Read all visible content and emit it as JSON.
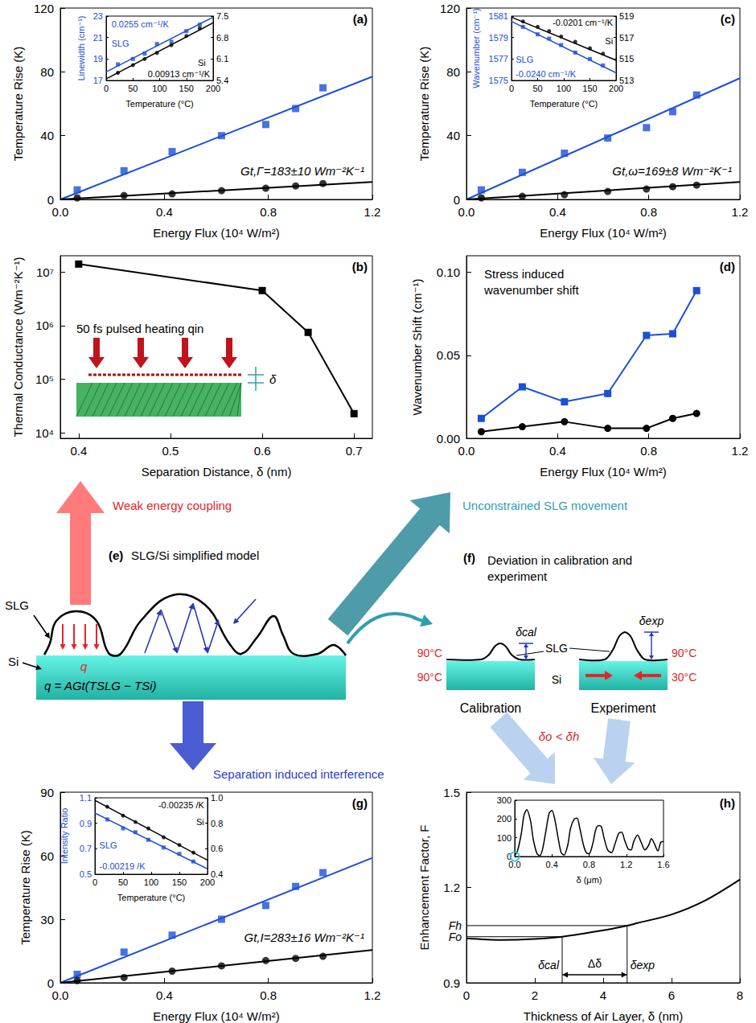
{
  "chart_data": [
    {
      "type": "scatter",
      "title": "(a)",
      "xlabel": "Energy Flux (10⁴ W/m²)",
      "ylabel": "Temperature Rise (K)",
      "xlim": [
        0,
        1.2
      ],
      "xticks": [
        {
          "value": 0,
          "label": "0.0"
        },
        0.4,
        0.8,
        1.2
      ],
      "ylim": [
        0,
        120
      ],
      "yticks": [
        0,
        40,
        80,
        120
      ],
      "annotations": [
        "Gt,Γ=183±10 Wm⁻²K⁻¹"
      ],
      "series": [
        {
          "color": "#1a4fd8",
          "marker": "square",
          "x": [
            0.065,
            0.245,
            0.43,
            0.62,
            0.79,
            0.905,
            1.01
          ],
          "values": [
            6,
            18,
            30,
            40,
            47,
            57,
            70
          ]
        },
        {
          "color": "#000000",
          "marker": "circle",
          "x": [
            0.065,
            0.245,
            0.43,
            0.62,
            0.79,
            0.905,
            1.01
          ],
          "values": [
            1,
            2.5,
            3.5,
            5.5,
            7,
            8.5,
            10
          ]
        },
        {
          "type": "line",
          "color": "#1a4fd8",
          "marker": "none",
          "x": [
            0,
            1.2
          ],
          "values": [
            0,
            77
          ]
        },
        {
          "type": "line",
          "color": "#000000",
          "marker": "none",
          "x": [
            0,
            1.2
          ],
          "values": [
            0,
            11
          ]
        }
      ],
      "inset": {
        "type": "scatter",
        "xlabel": "Temperature (°C)",
        "ylabel": "Linewidth (cm⁻¹)",
        "xlim": [
          0,
          200
        ],
        "xticks": [
          0,
          50,
          100,
          150,
          200
        ],
        "ylim": [
          17,
          23
        ],
        "yticks": [
          17,
          19,
          21,
          23
        ],
        "y2lim": [
          5.4,
          7.5
        ],
        "y2ticks": [
          5.4,
          6.1,
          6.8,
          7.5
        ],
        "series": [
          {
            "name": "SLG",
            "color": "#1a4fd8",
            "marker": "square",
            "x": [
              22,
              50,
              72,
              95,
              122,
              150,
              175
            ],
            "values": [
              18.5,
              19.0,
              19.5,
              20.4,
              20.6,
              21.6,
              22.2
            ]
          },
          {
            "name": "Si",
            "axis": "y2",
            "color": "#000000",
            "marker": "circle",
            "x": [
              22,
              50,
              72,
              95,
              122,
              150,
              175
            ],
            "values": [
              5.65,
              5.9,
              6.1,
              6.3,
              6.55,
              6.85,
              7.1
            ]
          },
          {
            "type": "line",
            "color": "#1a4fd8",
            "marker": "none",
            "annotation": "0.0255 cm⁻¹/K",
            "x": [
              0,
              200
            ],
            "values": [
              17.8,
              22.9
            ]
          },
          {
            "type": "line",
            "axis": "y2",
            "color": "#000000",
            "marker": "none",
            "annotation": "0.00913 cm⁻¹/K",
            "x": [
              0,
              200
            ],
            "values": [
              5.45,
              7.28
            ]
          }
        ]
      }
    },
    {
      "type": "line",
      "title": "(b)",
      "log": "y",
      "xlabel": "Separation Distance, δ (nm)",
      "ylabel": "Thermal Conductance (Wm⁻²K⁻¹)",
      "xlim": [
        0.38,
        0.72
      ],
      "xticks": [
        0.4,
        0.5,
        0.6,
        0.7
      ],
      "ylim": [
        8000,
        20000000
      ],
      "yticks": [
        {
          "value": 10000,
          "label": "10⁴"
        },
        {
          "value": 100000,
          "label": "10⁵"
        },
        {
          "value": 1000000,
          "label": "10⁶"
        },
        {
          "value": 10000000,
          "label": "10⁷"
        }
      ],
      "annotations": [
        "50 fs pulsed heating qin",
        "δ"
      ],
      "series": [
        {
          "color": "#000000",
          "marker": "square",
          "x": [
            0.4,
            0.6,
            0.65,
            0.7
          ],
          "values": [
            14000000,
            4500000,
            750000,
            23000
          ]
        }
      ]
    },
    {
      "type": "scatter",
      "title": "(c)",
      "xlabel": "Energy Flux (10⁴ W/m²)",
      "ylabel": "Temperature Rise (K)",
      "xlim": [
        0,
        1.2
      ],
      "xticks": [
        {
          "value": 0,
          "label": "0.0"
        },
        0.4,
        0.8,
        1.2
      ],
      "ylim": [
        0,
        120
      ],
      "yticks": [
        0,
        40,
        80,
        120
      ],
      "annotations": [
        "Gt,ω=169±8 Wm⁻²K⁻¹"
      ],
      "series": [
        {
          "color": "#1a4fd8",
          "marker": "square",
          "x": [
            0.065,
            0.245,
            0.43,
            0.62,
            0.79,
            0.905,
            1.01
          ],
          "values": [
            6,
            17,
            29,
            38.5,
            45,
            55,
            65.5
          ]
        },
        {
          "color": "#000000",
          "marker": "circle",
          "x": [
            0.065,
            0.245,
            0.43,
            0.62,
            0.79,
            0.905,
            1.01
          ],
          "values": [
            1,
            2,
            3,
            5,
            6.5,
            8,
            9
          ]
        },
        {
          "type": "line",
          "color": "#1a4fd8",
          "marker": "none",
          "x": [
            0,
            1.2
          ],
          "values": [
            0,
            76
          ]
        },
        {
          "type": "line",
          "color": "#000000",
          "marker": "none",
          "x": [
            0,
            1.2
          ],
          "values": [
            0,
            11
          ]
        }
      ],
      "inset": {
        "type": "scatter",
        "xlabel": "Temperature (°C)",
        "ylabel": "Wavenumber (cm⁻¹)",
        "xlim": [
          0,
          200
        ],
        "xticks": [
          0,
          50,
          100,
          150,
          200
        ],
        "ylim": [
          1575,
          1581
        ],
        "yticks": [
          1575,
          1577,
          1579,
          1581
        ],
        "y2lim": [
          513,
          519
        ],
        "y2ticks": [
          513,
          515,
          517,
          519
        ],
        "series": [
          {
            "name": "SLG",
            "color": "#1a4fd8",
            "marker": "square",
            "x": [
              22,
              50,
              72,
              95,
              122,
              150,
              175
            ],
            "values": [
              1580.0,
              1579.3,
              1578.9,
              1578.3,
              1577.6,
              1577.0,
              1576.4
            ]
          },
          {
            "name": "Si",
            "axis": "y2",
            "color": "#000000",
            "marker": "circle",
            "x": [
              22,
              50,
              72,
              95,
              122,
              150,
              175
            ],
            "values": [
              518.5,
              518.0,
              517.6,
              517.1,
              516.6,
              516.0,
              515.5
            ]
          },
          {
            "type": "line",
            "color": "#1a4fd8",
            "marker": "none",
            "annotation": "-0.0240 cm⁻¹/K",
            "x": [
              0,
              200
            ],
            "values": [
              1580.5,
              1575.7
            ]
          },
          {
            "type": "line",
            "axis": "y2",
            "color": "#000000",
            "marker": "none",
            "annotation": "-0.0201 cm⁻¹/K",
            "x": [
              0,
              200
            ],
            "values": [
              518.9,
              514.88
            ]
          }
        ]
      }
    },
    {
      "type": "line",
      "title": "(d)",
      "xlabel": "Energy Flux (10⁴ W/m²)",
      "ylabel": "Wavenumber Shift (cm⁻¹)",
      "xlim": [
        0,
        1.2
      ],
      "xticks": [
        {
          "value": 0,
          "label": "0.0"
        },
        0.4,
        0.8,
        1.2
      ],
      "ylim": [
        0,
        0.11
      ],
      "yticks": [
        {
          "value": 0,
          "label": "0.00"
        },
        0.05,
        {
          "value": 0.1,
          "label": "0.10"
        }
      ],
      "annotations": [
        "Stress induced wavenumber shift"
      ],
      "series": [
        {
          "color": "#1a4fd8",
          "marker": "square",
          "x": [
            0.065,
            0.245,
            0.43,
            0.62,
            0.79,
            0.905,
            1.01
          ],
          "values": [
            0.012,
            0.031,
            0.022,
            0.027,
            0.062,
            0.063,
            0.089
          ]
        },
        {
          "color": "#000000",
          "marker": "circle",
          "x": [
            0.065,
            0.245,
            0.43,
            0.62,
            0.79,
            0.905,
            1.01
          ],
          "values": [
            0.004,
            0.007,
            0.01,
            0.006,
            0.006,
            0.012,
            0.015
          ]
        }
      ]
    },
    {
      "type": "scatter",
      "title": "(g)",
      "xlabel": "Energy Flux (10⁴ W/m²)",
      "ylabel": "Temperature Rise (K)",
      "xlim": [
        0,
        1.2
      ],
      "xticks": [
        {
          "value": 0,
          "label": "0.0"
        },
        0.4,
        0.8,
        1.2
      ],
      "ylim": [
        0,
        90
      ],
      "yticks": [
        0,
        30,
        60,
        90
      ],
      "annotations": [
        "Gt,I=283±16 Wm⁻²K⁻¹"
      ],
      "series": [
        {
          "color": "#1a4fd8",
          "marker": "square",
          "x": [
            0.065,
            0.245,
            0.43,
            0.62,
            0.79,
            0.905,
            1.01
          ],
          "values": [
            4,
            14.5,
            22.5,
            30,
            36.5,
            45.5,
            52
          ]
        },
        {
          "color": "#000000",
          "marker": "circle",
          "x": [
            0.065,
            0.245,
            0.43,
            0.62,
            0.79,
            0.905,
            1.01
          ],
          "values": [
            1,
            2.5,
            5.5,
            8,
            10.5,
            11.5,
            12.5
          ]
        },
        {
          "type": "line",
          "color": "#1a4fd8",
          "marker": "none",
          "x": [
            0,
            1.2
          ],
          "values": [
            0,
            59
          ]
        },
        {
          "type": "line",
          "color": "#000000",
          "marker": "none",
          "x": [
            0,
            1.2
          ],
          "values": [
            0,
            15.5
          ]
        }
      ],
      "inset": {
        "type": "scatter",
        "xlabel": "Temperature (°C)",
        "ylabel": "Intensity Ratio",
        "xlim": [
          0,
          200
        ],
        "xticks": [
          0,
          50,
          100,
          150,
          200
        ],
        "ylim": [
          0.5,
          1.1
        ],
        "yticks": [
          0.5,
          0.7,
          0.9,
          1.1
        ],
        "y2lim": [
          0.4,
          1
        ],
        "y2ticks": [
          0.4,
          0.6,
          0.8,
          {
            "value": 1,
            "label": "1.0"
          }
        ],
        "series": [
          {
            "name": "SLG",
            "color": "#1a4fd8",
            "marker": "square",
            "x": [
              22,
              50,
              72,
              95,
              122,
              150,
              175
            ],
            "values": [
              0.93,
              0.86,
              0.83,
              0.77,
              0.71,
              0.66,
              0.6
            ]
          },
          {
            "name": "Si",
            "axis": "y2",
            "color": "#000000",
            "marker": "circle",
            "x": [
              22,
              50,
              72,
              95,
              122,
              150,
              175
            ],
            "values": [
              0.93,
              0.86,
              0.81,
              0.76,
              0.69,
              0.63,
              0.57
            ]
          },
          {
            "type": "line",
            "color": "#1a4fd8",
            "marker": "none",
            "annotation": "-0.00219 /K",
            "x": [
              0,
              200
            ],
            "values": [
              0.98,
              0.542
            ]
          },
          {
            "type": "line",
            "axis": "y2",
            "color": "#000000",
            "marker": "none",
            "annotation": "-0.00235 /K",
            "x": [
              0,
              200
            ],
            "values": [
              0.98,
              0.51
            ]
          }
        ]
      }
    },
    {
      "type": "line",
      "title": "(h)",
      "xlabel": "Thickness of Air Layer, δ (nm)",
      "ylabel": "Enhancement Factor, F",
      "xlim": [
        0,
        8
      ],
      "xticks": [
        0,
        2,
        4,
        6,
        8
      ],
      "ylim": [
        0.9,
        1.5
      ],
      "yticks": [
        0.9,
        1.2,
        1.5
      ],
      "series": [
        {
          "color": "#000000",
          "marker": "none",
          "x": [
            0,
            1,
            2,
            2.8,
            4,
            4.7,
            5,
            6,
            7,
            8
          ],
          "values": [
            1.04,
            1.035,
            1.038,
            1.045,
            1.065,
            1.08,
            1.088,
            1.115,
            1.16,
            1.225
          ]
        }
      ],
      "guides": [
        {
          "x_label": "δcal",
          "y_label": "Fo",
          "x": 2.8,
          "y": 1.045
        },
        {
          "x_label": "δexp",
          "y_label": "Fh",
          "x": 4.7,
          "y": 1.08
        }
      ],
      "span_label": "Δδ",
      "inset": {
        "type": "line",
        "xlabel": "δ (μm)",
        "xlim": [
          0,
          1.6
        ],
        "xticks": [
          {
            "value": 0,
            "label": "0.0"
          },
          0.4,
          0.8,
          1.2,
          1.6
        ],
        "ylim": [
          0,
          300
        ],
        "yticks": [
          0,
          100,
          200,
          300
        ],
        "highlight": {
          "x": 0,
          "y": 0
        },
        "series": [
          {
            "color": "#000000",
            "marker": "none",
            "x": [
              0,
              0.03,
              0.07,
              0.1,
              0.13,
              0.17,
              0.2,
              0.24,
              0.27,
              0.3,
              0.34,
              0.37,
              0.4,
              0.43,
              0.47,
              0.5,
              0.53,
              0.57,
              0.6,
              0.64,
              0.67,
              0.7,
              0.74,
              0.77,
              0.8,
              0.84,
              0.87,
              0.9,
              0.93,
              0.96,
              1.0,
              1.04,
              1.08,
              1.12,
              1.15,
              1.18,
              1.22,
              1.25,
              1.28,
              1.32,
              1.36,
              1.4,
              1.44,
              1.47,
              1.5,
              1.54,
              1.57,
              1.6
            ],
            "values": [
              5,
              30,
              120,
              220,
              250,
              190,
              90,
              15,
              5,
              40,
              150,
              230,
              245,
              200,
              90,
              20,
              8,
              60,
              150,
              200,
              205,
              150,
              60,
              20,
              15,
              70,
              140,
              165,
              160,
              100,
              35,
              20,
              70,
              125,
              130,
              90,
              40,
              35,
              80,
              115,
              75,
              35,
              60,
              95,
              70,
              30,
              75,
              80
            ]
          }
        ]
      }
    }
  ],
  "diagram": {
    "e": {
      "label": "(e)",
      "title": "SLG/Si simplified model",
      "slg": "SLG",
      "si": "Si",
      "q": "q",
      "equation": "q = AGt(TSLG − TSi)"
    },
    "f": {
      "label": "(f)",
      "title": "Deviation in calibration and experiment",
      "delta_cal": "δcal",
      "delta_exp": "δexp",
      "slg": "SLG",
      "si": "Si",
      "calibration": "Calibration",
      "experiment": "Experiment",
      "cal_temps": [
        "90°C",
        "90°C"
      ],
      "exp_temps": [
        "90°C",
        "30°C"
      ],
      "relation": "δo < δh"
    },
    "arrows": {
      "up": "Weak energy coupling",
      "diagonal": "Unconstrained SLG movement",
      "down": "Separation induced interference"
    }
  }
}
